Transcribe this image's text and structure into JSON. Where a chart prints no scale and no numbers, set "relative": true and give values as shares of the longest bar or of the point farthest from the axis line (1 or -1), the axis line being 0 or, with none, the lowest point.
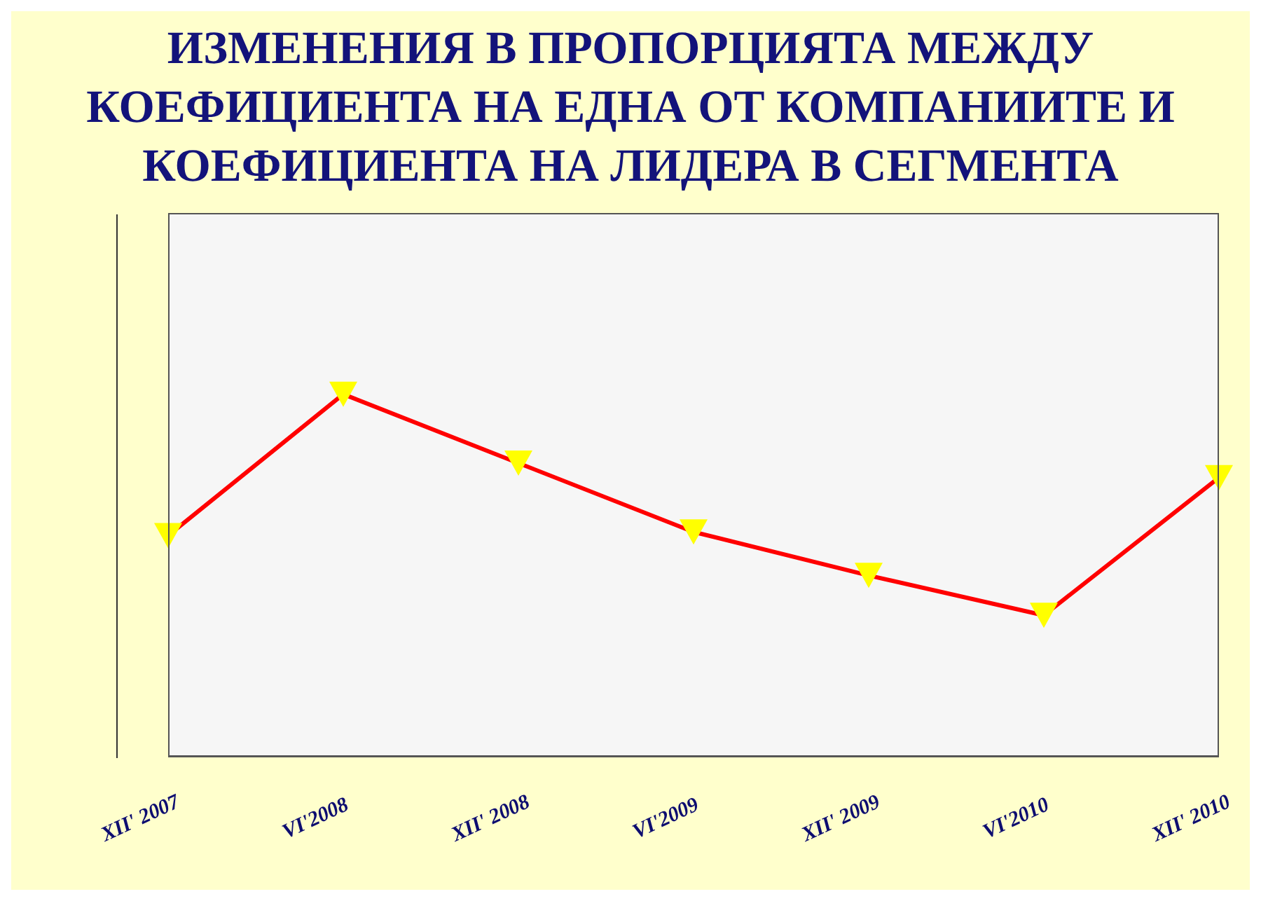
{
  "chart_data": {
    "type": "line",
    "title": "ИЗМЕНЕНИЯ В ПРОПОРЦИЯТА МЕЖДУ КОЕФИЦИЕНТА НА ЕДНА ОТ КОМПАНИИТЕ И КОЕФИЦИЕНТА НА ЛИДЕРА В СЕГМЕНТА",
    "relative": true,
    "categories": [
      "XII' 2007",
      "VI'2008",
      "XII' 2008",
      "VI'2009",
      "XII' 2009",
      "VI'2010",
      "XII' 2010"
    ],
    "series": [
      {
        "color": "#ff0000",
        "values": [
          0.61,
          1,
          0.81,
          0.62,
          0.5,
          0.39,
          0.77
        ]
      }
    ],
    "marker": "triangle",
    "line_style": "solid"
  }
}
